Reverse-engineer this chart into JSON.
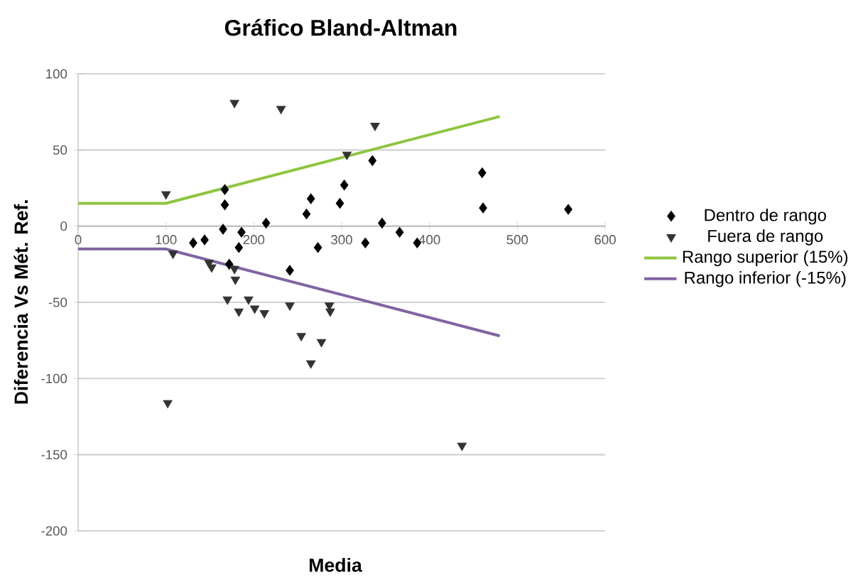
{
  "chart_data": {
    "type": "scatter",
    "title": "Gráfico Bland-Altman",
    "xlabel": "Media",
    "ylabel": "Diferencia Vs Mét. Ref.",
    "xlim": [
      0,
      600
    ],
    "xticks": [
      0,
      100,
      200,
      300,
      400,
      500,
      600
    ],
    "ylim": [
      -200,
      100
    ],
    "yticks": [
      -200,
      -150,
      -100,
      -50,
      0,
      50,
      100
    ],
    "grid": "y",
    "legend": "right",
    "series": [
      {
        "name": "Dentro de rango",
        "type": "scatter",
        "marker": "diamond",
        "color": "#000000",
        "x": [
          167,
          167,
          165,
          131,
          144,
          186,
          183,
          214,
          260,
          265,
          298,
          303,
          273,
          327,
          335,
          346,
          366,
          386,
          460,
          461,
          558,
          172,
          241
        ],
        "values": [
          24,
          14,
          -2,
          -11,
          -9,
          -4,
          -14,
          2,
          8,
          18,
          15,
          27,
          -14,
          -11,
          43,
          2,
          -4,
          -11,
          35,
          12,
          11,
          -25,
          -29
        ]
      },
      {
        "name": "Fuera de rango",
        "type": "scatter",
        "marker": "triangle",
        "color": "#333333",
        "x": [
          178,
          231,
          338,
          306,
          100,
          108,
          149,
          152,
          178,
          179,
          170,
          183,
          194,
          201,
          212,
          241,
          286,
          287,
          254,
          277,
          265,
          102,
          437
        ],
        "values": [
          81,
          77,
          66,
          47,
          21,
          -18,
          -24,
          -27,
          -28,
          -35,
          -48,
          -56,
          -48,
          -54,
          -57,
          -52,
          -52,
          -56,
          -72,
          -76,
          -90,
          -116,
          -144
        ]
      },
      {
        "name": "Rango superior (15%)",
        "type": "line",
        "color": "#8dc63f",
        "x": [
          0,
          100,
          480
        ],
        "values": [
          15,
          15,
          72
        ]
      },
      {
        "name": "Rango inferior (-15%)",
        "type": "line",
        "color": "#8064a2",
        "x": [
          0,
          100,
          480
        ],
        "values": [
          -15,
          -15,
          -72
        ]
      }
    ]
  }
}
